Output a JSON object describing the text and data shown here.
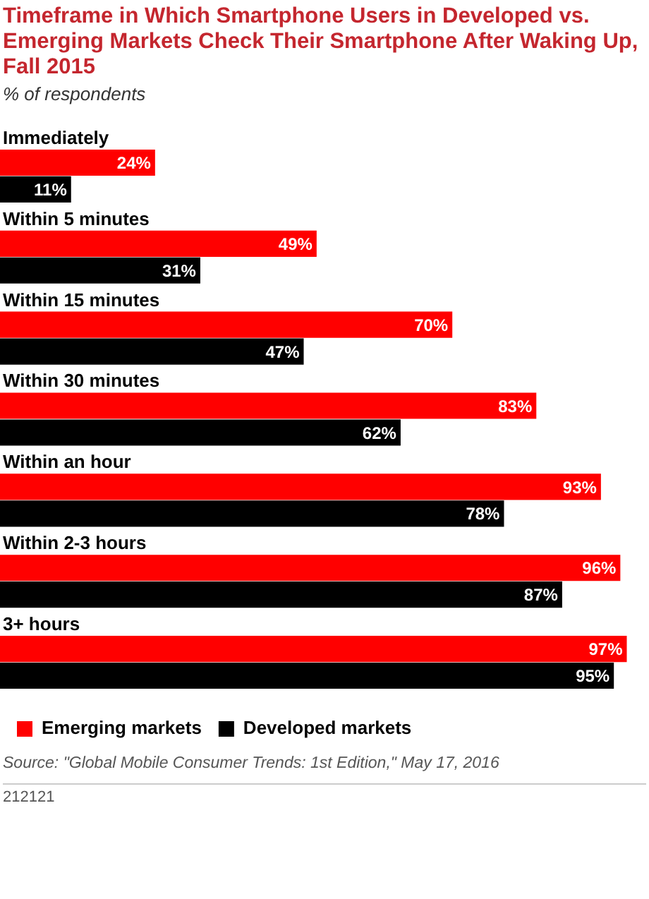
{
  "chart_data": {
    "type": "bar",
    "orientation": "horizontal",
    "title": "Timeframe in Which Smartphone Users in Developed vs. Emerging Markets Check Their Smartphone After Waking Up, Fall 2015",
    "subtitle": "% of respondents",
    "categories": [
      "Immediately",
      "Within 5 minutes",
      "Within 15 minutes",
      "Within 30 minutes",
      "Within an hour",
      "Within 2-3 hours",
      "3+ hours"
    ],
    "series": [
      {
        "name": "Emerging markets",
        "color": "#ff0000",
        "values": [
          24,
          49,
          70,
          83,
          93,
          96,
          97
        ],
        "value_labels": [
          "24%",
          "49%",
          "70%",
          "83%",
          "93%",
          "96%",
          "97%"
        ]
      },
      {
        "name": "Developed markets",
        "color": "#000000",
        "values": [
          11,
          31,
          47,
          62,
          78,
          87,
          95
        ],
        "value_labels": [
          "11%",
          "31%",
          "47%",
          "62%",
          "78%",
          "87%",
          "95%"
        ]
      }
    ],
    "legend": "bottom",
    "annotations": [
      "Source: \"Global Mobile Consumer Trends: 1st Edition,\" May 17, 2016",
      "212121"
    ]
  }
}
